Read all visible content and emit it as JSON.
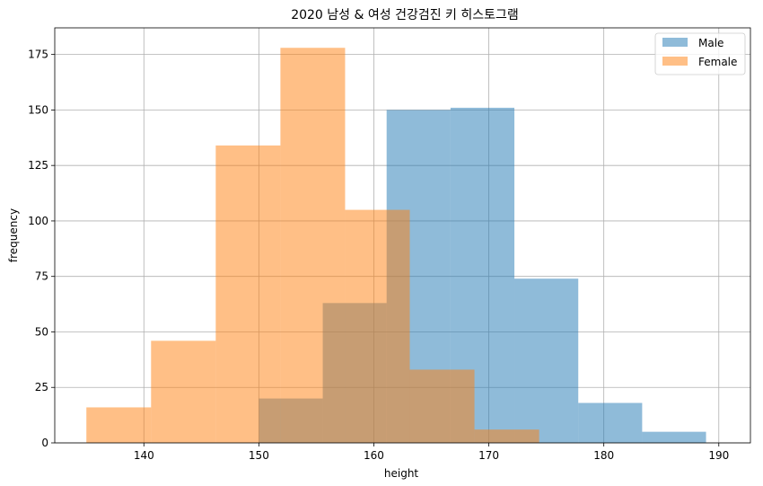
{
  "chart_data": {
    "type": "histogram",
    "title": "2020 남성 & 여성 건강검진 키 히스토그램",
    "xlabel": "height",
    "ylabel": "frequency",
    "xlim": [
      132.25,
      192.75
    ],
    "ylim": [
      0,
      187
    ],
    "xticks": [
      140,
      150,
      160,
      170,
      180,
      190
    ],
    "yticks": [
      0,
      25,
      50,
      75,
      100,
      125,
      150,
      175
    ],
    "grid": true,
    "legend_position": "top-right",
    "series": [
      {
        "name": "Male",
        "color": "#1f77b4",
        "alpha": 0.5,
        "bin_edges": [
          150,
          155.556,
          161.111,
          166.667,
          172.222,
          177.778,
          183.333,
          188.889
        ],
        "bin_width": 5.556,
        "counts": [
          20,
          63,
          150,
          151,
          74,
          18,
          5
        ]
      },
      {
        "name": "Female",
        "color": "#ff7f0e",
        "alpha": 0.5,
        "bin_edges": [
          135,
          140.625,
          146.25,
          151.875,
          157.5,
          163.125,
          168.75,
          174.375
        ],
        "bin_width": 5.625,
        "counts": [
          16,
          46,
          134,
          178,
          105,
          33,
          6
        ]
      }
    ]
  }
}
